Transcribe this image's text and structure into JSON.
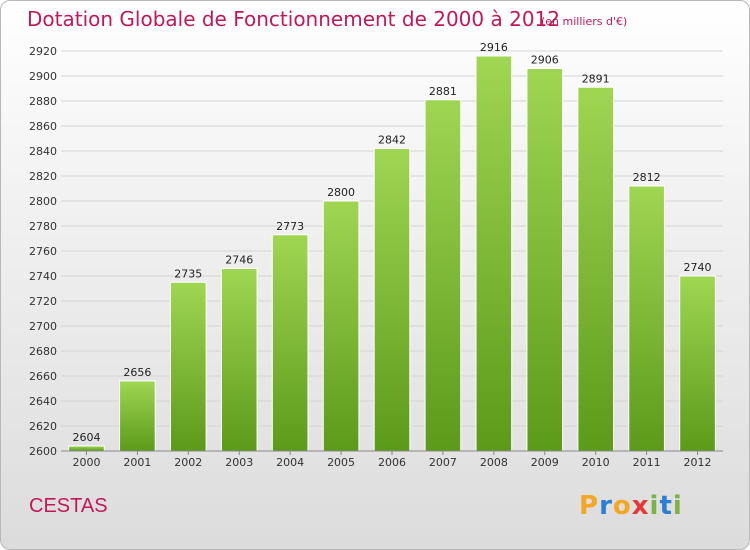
{
  "header": {
    "title": "Dotation Globale de Fonctionnement de 2000 à 2012",
    "unit_note": "(en milliers d'€)"
  },
  "footer": {
    "commune": "CESTAS",
    "logo_text": "Proxiti",
    "logo_letters": [
      "P",
      "r",
      "o",
      "x",
      "i",
      "t",
      "i"
    ],
    "logo_colors": [
      "#f5a623",
      "#2a7fd4",
      "#f5a623",
      "#e53935",
      "#7cb342",
      "#2a7fd4",
      "#7cb342"
    ]
  },
  "chart_data": {
    "type": "bar",
    "categories": [
      "2000",
      "2001",
      "2002",
      "2003",
      "2004",
      "2005",
      "2006",
      "2007",
      "2008",
      "2009",
      "2010",
      "2011",
      "2012"
    ],
    "values": [
      2604,
      2656,
      2735,
      2746,
      2773,
      2800,
      2842,
      2881,
      2916,
      2906,
      2891,
      2812,
      2740
    ],
    "yticks": [
      2600,
      2620,
      2640,
      2660,
      2680,
      2700,
      2720,
      2740,
      2760,
      2780,
      2800,
      2820,
      2840,
      2860,
      2880,
      2900,
      2920
    ],
    "ylim": [
      2600,
      2920
    ],
    "grid": true,
    "bar_color": "#8cc63f"
  }
}
